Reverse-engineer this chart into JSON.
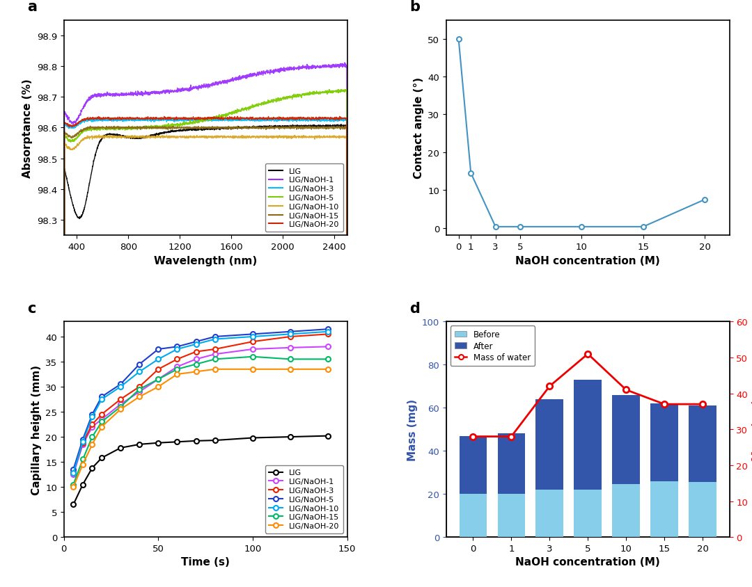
{
  "panel_a": {
    "title": "a",
    "xlabel": "Wavelength (nm)",
    "ylabel": "Absorptance (%)",
    "xlim": [
      300,
      2500
    ],
    "ylim": [
      98.25,
      98.95
    ],
    "yticks": [
      98.3,
      98.4,
      98.5,
      98.6,
      98.7,
      98.8,
      98.9
    ],
    "xticks": [
      400,
      800,
      1200,
      1600,
      2000,
      2400
    ],
    "series": {
      "LIG": {
        "color": "#000000"
      },
      "LIG/NaOH-1": {
        "color": "#9B30FF"
      },
      "LIG/NaOH-3": {
        "color": "#00BFFF"
      },
      "LIG/NaOH-5": {
        "color": "#7CCD00"
      },
      "LIG/NaOH-10": {
        "color": "#DAA520"
      },
      "LIG/NaOH-15": {
        "color": "#8B6914"
      },
      "LIG/NaOH-20": {
        "color": "#CC2200"
      }
    }
  },
  "panel_b": {
    "title": "b",
    "xlabel": "NaOH concentration (M)",
    "ylabel": "Contact angle (°)",
    "x": [
      0,
      1,
      3,
      5,
      10,
      15,
      20
    ],
    "y": [
      50,
      14.5,
      0.3,
      0.3,
      0.3,
      0.3,
      7.5
    ],
    "color": "#4393C3",
    "ylim": [
      -2,
      55
    ],
    "yticks": [
      0,
      10,
      20,
      30,
      40,
      50
    ],
    "xticks": [
      0,
      1,
      3,
      5,
      10,
      15,
      20
    ]
  },
  "panel_c": {
    "title": "c",
    "xlabel": "Time (s)",
    "ylabel": "Capillary height (mm)",
    "xlim": [
      0,
      150
    ],
    "ylim": [
      0,
      43
    ],
    "yticks": [
      0,
      5,
      10,
      15,
      20,
      25,
      30,
      35,
      40
    ],
    "xticks": [
      0,
      50,
      100,
      150
    ],
    "series": {
      "LIG": {
        "color": "#000000",
        "x": [
          5,
          10,
          15,
          20,
          30,
          40,
          50,
          60,
          70,
          80,
          100,
          120,
          140
        ],
        "y": [
          6.5,
          10.5,
          13.8,
          15.8,
          17.8,
          18.5,
          18.8,
          19.0,
          19.2,
          19.3,
          19.8,
          20.0,
          20.2
        ]
      },
      "LIG/NaOH-1": {
        "color": "#CC44FF",
        "x": [
          5,
          10,
          15,
          20,
          30,
          40,
          50,
          60,
          70,
          80,
          100,
          120,
          140
        ],
        "y": [
          12.5,
          18.5,
          22.0,
          23.5,
          26.5,
          29.0,
          31.5,
          34.0,
          35.5,
          36.5,
          37.5,
          37.8,
          38.0
        ]
      },
      "LIG/NaOH-3": {
        "color": "#EE2200",
        "x": [
          5,
          10,
          15,
          20,
          30,
          40,
          50,
          60,
          70,
          80,
          100,
          120,
          140
        ],
        "y": [
          13.0,
          18.8,
          22.5,
          24.5,
          27.5,
          30.0,
          33.5,
          35.5,
          37.0,
          37.5,
          39.0,
          40.0,
          40.5
        ]
      },
      "LIG/NaOH-5": {
        "color": "#1E3FCC",
        "x": [
          5,
          10,
          15,
          20,
          30,
          40,
          50,
          60,
          70,
          80,
          100,
          120,
          140
        ],
        "y": [
          13.5,
          19.5,
          24.5,
          28.0,
          30.5,
          34.5,
          37.5,
          38.0,
          39.0,
          40.0,
          40.5,
          41.0,
          41.5
        ]
      },
      "LIG/NaOH-10": {
        "color": "#00AAEE",
        "x": [
          5,
          10,
          15,
          20,
          30,
          40,
          50,
          60,
          70,
          80,
          100,
          120,
          140
        ],
        "y": [
          12.8,
          19.0,
          24.0,
          27.5,
          30.0,
          33.0,
          35.5,
          37.5,
          38.5,
          39.5,
          40.0,
          40.5,
          41.0
        ]
      },
      "LIG/NaOH-15": {
        "color": "#00BB66",
        "x": [
          5,
          10,
          15,
          20,
          30,
          40,
          50,
          60,
          70,
          80,
          100,
          120,
          140
        ],
        "y": [
          10.5,
          15.5,
          20.0,
          23.0,
          26.0,
          29.5,
          31.5,
          33.5,
          34.5,
          35.5,
          36.0,
          35.5,
          35.5
        ]
      },
      "LIG/NaOH-20": {
        "color": "#FF8C00",
        "x": [
          5,
          10,
          15,
          20,
          30,
          40,
          50,
          60,
          70,
          80,
          100,
          120,
          140
        ],
        "y": [
          10.0,
          14.5,
          18.5,
          22.0,
          25.5,
          28.0,
          30.0,
          32.5,
          33.0,
          33.5,
          33.5,
          33.5,
          33.5
        ]
      }
    }
  },
  "panel_d": {
    "title": "d",
    "xlabel": "NaOH concentration (M)",
    "ylabel_left": "Mass (mg)",
    "ylabel_right": "Mass (mg)",
    "categories": [
      "0",
      "1",
      "3",
      "5",
      "10",
      "15",
      "20"
    ],
    "before": [
      20,
      20,
      22,
      22,
      24.5,
      26,
      25.5
    ],
    "after": [
      47,
      48,
      64,
      73,
      66,
      62,
      61
    ],
    "water": [
      28,
      28,
      42,
      51,
      41,
      37,
      37
    ],
    "bar_color_before": "#87CEEB",
    "bar_color_after": "#3355AA",
    "line_color": "#EE0000",
    "ylim_left": [
      0,
      100
    ],
    "ylim_right": [
      0,
      60
    ],
    "yticks_left": [
      0,
      20,
      40,
      60,
      80,
      100
    ],
    "yticks_right": [
      0,
      10,
      20,
      30,
      40,
      50,
      60
    ]
  }
}
